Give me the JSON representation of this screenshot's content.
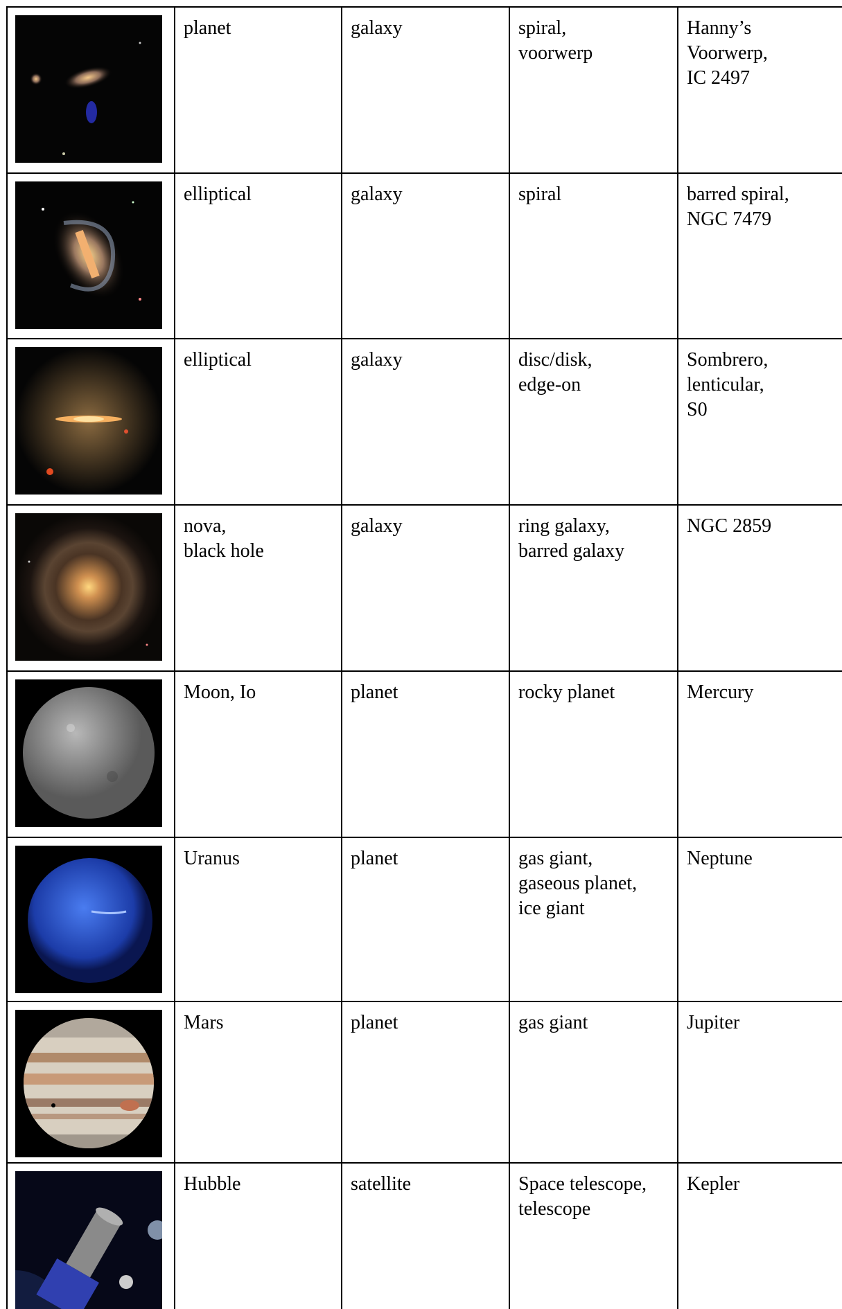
{
  "table": {
    "rows": [
      [
        "planet",
        "galaxy",
        "spiral,\nvoorwerp",
        "Hanny’s\nVoorwerp,\nIC 2497"
      ],
      [
        "elliptical",
        "galaxy",
        "spiral",
        "barred spiral,\nNGC 7479"
      ],
      [
        "elliptical",
        "galaxy",
        "disc/disk,\nedge-on",
        "Sombrero,\nlenticular,\nS0"
      ],
      [
        "nova,\nblack hole",
        "galaxy",
        "ring galaxy,\nbarred galaxy",
        "NGC 2859"
      ],
      [
        "Moon, Io",
        "planet",
        "rocky planet",
        "Mercury"
      ],
      [
        "Uranus",
        "planet",
        "gas giant,\ngaseous planet,\nice giant",
        "Neptune"
      ],
      [
        "Mars",
        "planet",
        "gas giant",
        "Jupiter"
      ],
      [
        "Hubble",
        "satellite",
        "Space telescope,\ntelescope",
        "Kepler"
      ]
    ]
  }
}
